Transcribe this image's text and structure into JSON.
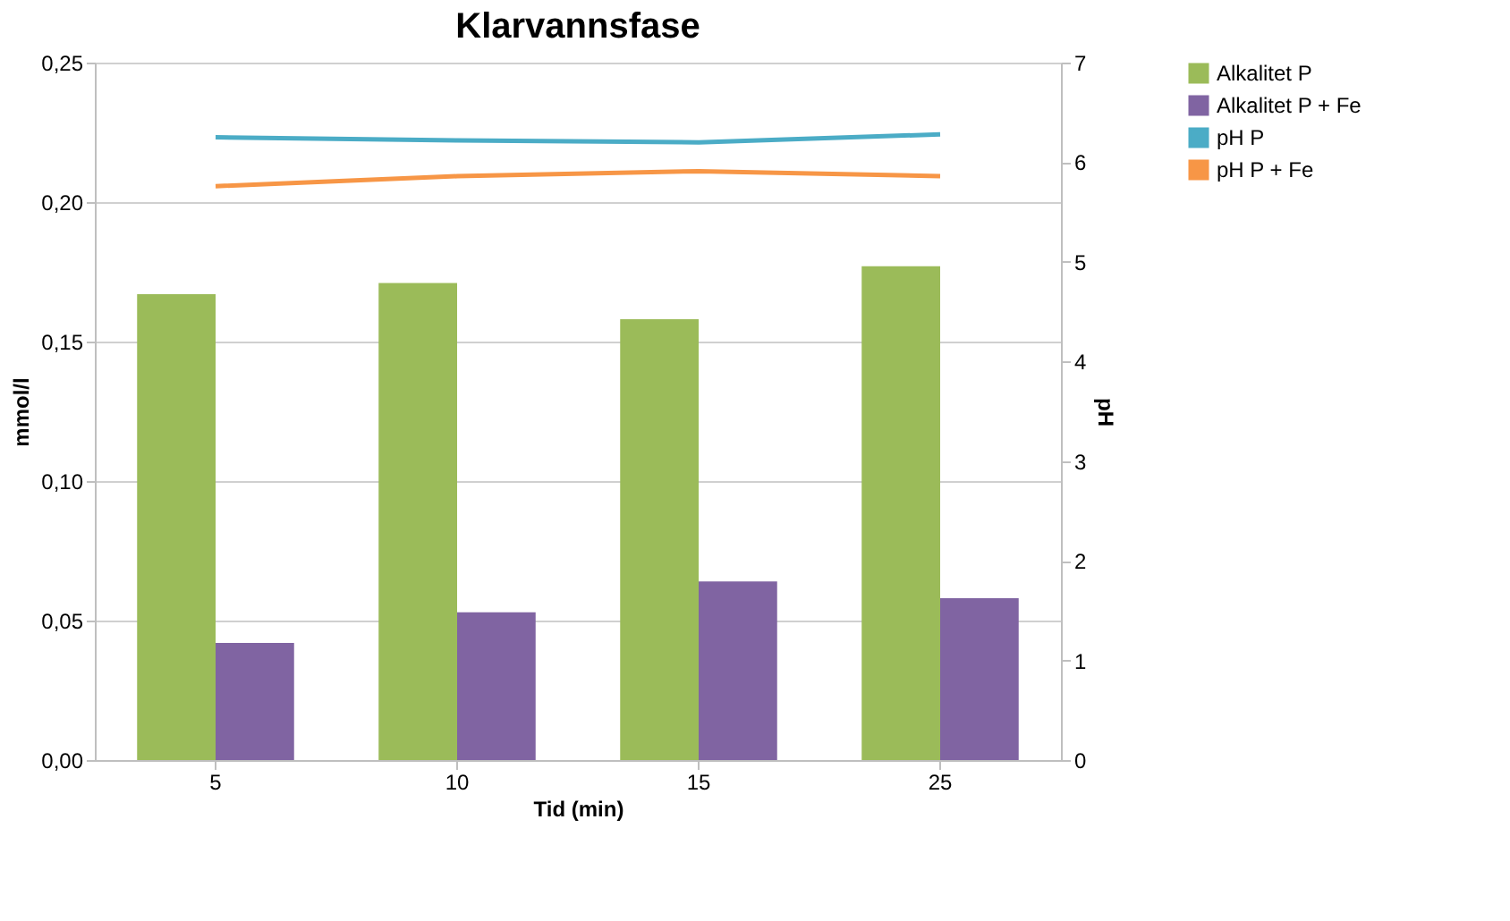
{
  "chart_data": {
    "type": "bar",
    "title": "Klarvannsfase",
    "xlabel": "Tid (min)",
    "ylabel": "mmol/l",
    "y2label": "pH",
    "categories": [
      "5",
      "10",
      "15",
      "25"
    ],
    "series": [
      {
        "name": "Alkalitet P",
        "color": "#9bbb59",
        "values": [
          0.167,
          0.171,
          0.158,
          0.177
        ]
      },
      {
        "name": "Alkalitet P + Fe",
        "color": "#8064a2",
        "values": [
          0.042,
          0.053,
          0.064,
          0.058
        ]
      },
      {
        "name": "pH P",
        "type": "line",
        "axis": "y2",
        "color": "#4bacc6",
        "values": [
          6.25,
          6.22,
          6.2,
          6.28
        ]
      },
      {
        "name": "pH P + Fe",
        "type": "line",
        "axis": "y2",
        "color": "#f79646",
        "values": [
          5.76,
          5.86,
          5.91,
          5.86
        ]
      }
    ],
    "ylim": [
      0,
      0.25
    ],
    "yticks": [
      {
        "value": 0,
        "label": "0,00"
      },
      {
        "value": 0.05,
        "label": "0,05"
      },
      {
        "value": 0.1,
        "label": "0,10"
      },
      {
        "value": 0.15,
        "label": "0,15"
      },
      {
        "value": 0.2,
        "label": "0,20"
      },
      {
        "value": 0.25,
        "label": "0,25"
      }
    ],
    "y2lim": [
      0,
      7
    ],
    "y2ticks": [
      0,
      1,
      2,
      3,
      4,
      5,
      6,
      7
    ],
    "grid": "y",
    "legend": "right",
    "marker": "none",
    "line_style": "solid"
  }
}
